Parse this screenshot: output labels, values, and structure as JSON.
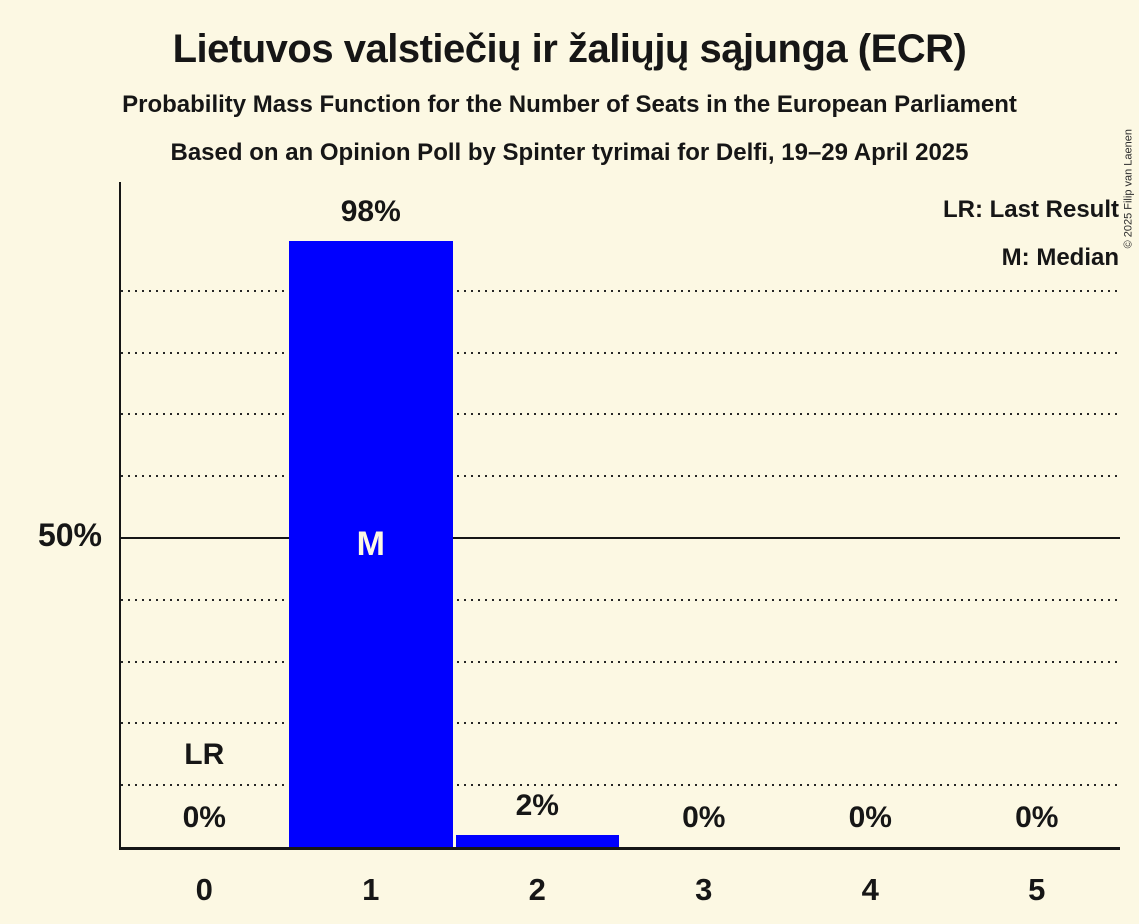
{
  "title": "Lietuvos valstiečių ir žaliųjų sąjunga (ECR)",
  "subtitle": "Probability Mass Function for the Number of Seats in the European Parliament",
  "source_line": "Based on an Opinion Poll by Spinter tyrimai for Delfi, 19–29 April 2025",
  "copyright": "© 2025 Filip van Laenen",
  "legend": {
    "lr": "LR: Last Result",
    "m": "M: Median"
  },
  "colors": {
    "background": "#FCF8E3",
    "bar": "#0000FF",
    "text": "#161616",
    "median_label": "#FCF8E3"
  },
  "y_axis": {
    "tick_label": "50%",
    "tick_value": 50
  },
  "chart_data": {
    "type": "bar",
    "title": "Probability Mass Function for the Number of Seats in the European Parliament",
    "categories": [
      "0",
      "1",
      "2",
      "3",
      "4",
      "5"
    ],
    "values": [
      0,
      98,
      2,
      0,
      0,
      0
    ],
    "value_labels": [
      "0%",
      "98%",
      "2%",
      "0%",
      "0%",
      "0%"
    ],
    "ylim": [
      0,
      107
    ],
    "solid_line_pct": 50,
    "gridlines_pct": [
      10,
      20,
      30,
      40,
      60,
      70,
      80,
      90
    ],
    "grid": "dotted horizontal",
    "legend_position": "top-right",
    "annotations": {
      "lr_label": "LR",
      "last_result_seat": 0,
      "m_label": "M",
      "median_seat": 1
    }
  }
}
